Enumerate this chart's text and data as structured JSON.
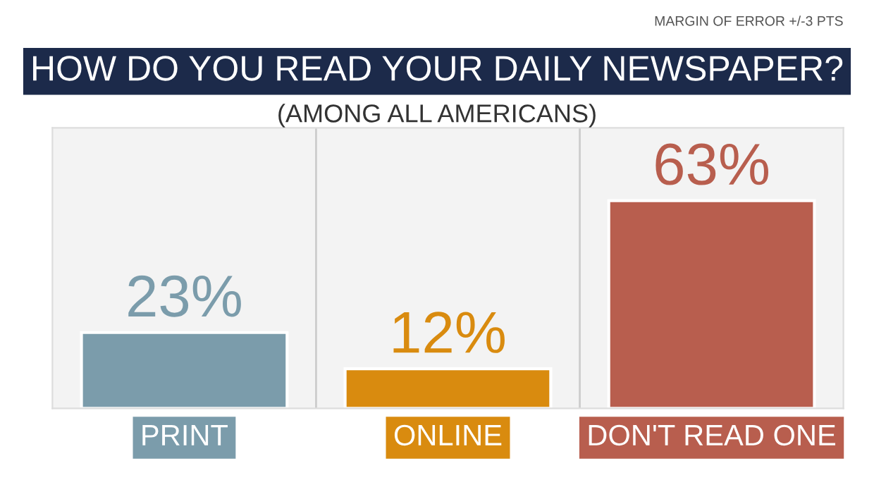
{
  "chart_data": {
    "type": "bar",
    "title": "HOW DO YOU READ YOUR DAILY NEWSPAPER?",
    "subtitle": "(AMONG ALL AMERICANS)",
    "annotations": [
      "MARGIN OF ERROR +/-3 PTS"
    ],
    "categories": [
      "PRINT",
      "ONLINE",
      "DON'T READ ONE"
    ],
    "values": [
      23,
      12,
      63
    ],
    "colors": [
      "#7b9cab",
      "#d98b0f",
      "#b85e4e"
    ],
    "value_labels": [
      "23%",
      "12%",
      "63%"
    ]
  }
}
